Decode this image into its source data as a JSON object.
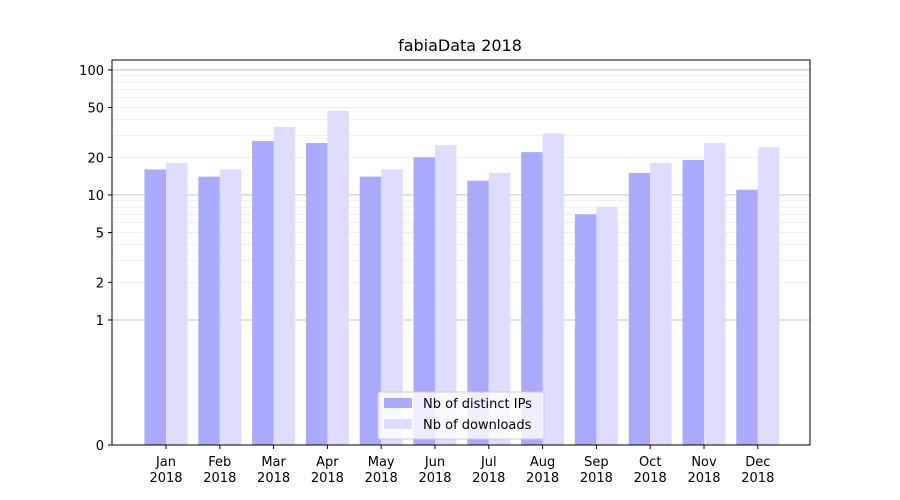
{
  "chart_data": {
    "type": "bar",
    "title": "fabiaData 2018",
    "xlabel": "",
    "ylabel": "",
    "yscale": "symlog",
    "ylim": [
      0,
      120
    ],
    "yticks": [
      0,
      1,
      2,
      5,
      10,
      20,
      50,
      100
    ],
    "ytick_labels": [
      "0",
      "1",
      "2",
      "5",
      "10",
      "20",
      "50",
      "100"
    ],
    "grid": true,
    "legend_position": "bottom-center",
    "categories": [
      [
        "Jan",
        "2018"
      ],
      [
        "Feb",
        "2018"
      ],
      [
        "Mar",
        "2018"
      ],
      [
        "Apr",
        "2018"
      ],
      [
        "May",
        "2018"
      ],
      [
        "Jun",
        "2018"
      ],
      [
        "Jul",
        "2018"
      ],
      [
        "Aug",
        "2018"
      ],
      [
        "Sep",
        "2018"
      ],
      [
        "Oct",
        "2018"
      ],
      [
        "Nov",
        "2018"
      ],
      [
        "Dec",
        "2018"
      ]
    ],
    "series": [
      {
        "name": "Nb of distinct IPs",
        "color": "#aaaaff",
        "values": [
          16,
          14,
          27,
          26,
          14,
          20,
          13,
          22,
          7,
          15,
          19,
          11
        ]
      },
      {
        "name": "Nb of downloads",
        "color": "#ddddff",
        "values": [
          18,
          16,
          35,
          47,
          16,
          25,
          15,
          31,
          8,
          18,
          26,
          24
        ]
      }
    ]
  }
}
